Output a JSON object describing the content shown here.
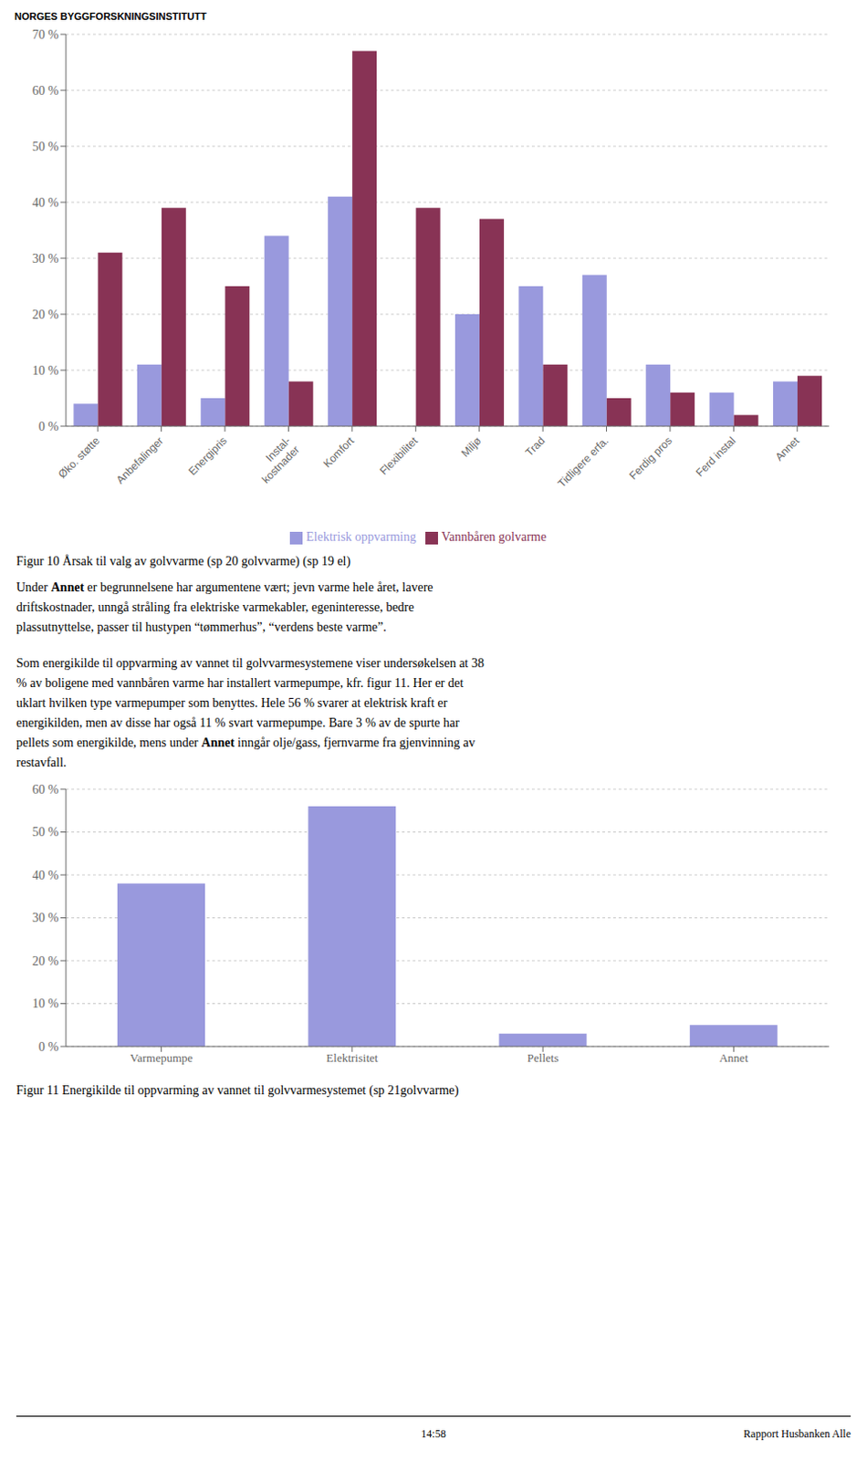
{
  "header": "NORGES BYGGFORSKNINGSINSTITUTT",
  "chart_data": [
    {
      "type": "bar",
      "categories": [
        "Øko. støtte",
        "Anbefalinger",
        "Energipris",
        "Instal-\nkostnader",
        "Komfort",
        "Flexibilitet",
        "Miljø",
        "Trad",
        "Tidligere erfa.",
        "Ferdig pros",
        "Ferd instal",
        "Annet"
      ],
      "series": [
        {
          "name": "Elektrisk oppvarming",
          "color": "#9999dd",
          "values": [
            4,
            11,
            5,
            34,
            41,
            0,
            20,
            25,
            27,
            11,
            6,
            8
          ]
        },
        {
          "name": "Vannbåren golvarme",
          "color": "#883355",
          "values": [
            31,
            39,
            25,
            8,
            67,
            39,
            37,
            11,
            5,
            6,
            2,
            9
          ]
        }
      ],
      "ylim": [
        0,
        70
      ],
      "yticks": [
        {
          "value": 0,
          "label": "0 %"
        },
        {
          "value": 10,
          "label": "10 %"
        },
        {
          "value": 20,
          "label": "20 %"
        },
        {
          "value": 30,
          "label": "30 %"
        },
        {
          "value": 40,
          "label": "40 %"
        },
        {
          "value": 50,
          "label": "50 %"
        },
        {
          "value": 60,
          "label": "60 %"
        },
        {
          "value": 70,
          "label": "70 %"
        }
      ],
      "grid": true,
      "legend": "bottom",
      "caption": "Figur 10 Årsak til valg av golvvarme (sp 20 golvvarme) (sp 19 el)"
    },
    {
      "type": "bar",
      "categories": [
        "Varmepumpe",
        "Elektrisitet",
        "Pellets",
        "Annet"
      ],
      "values": [
        38,
        56,
        3,
        5
      ],
      "color": "#9999dd",
      "ylim": [
        0,
        60
      ],
      "yticks": [
        {
          "value": 0,
          "label": "0 %"
        },
        {
          "value": 10,
          "label": "10 %"
        },
        {
          "value": 20,
          "label": "20 %"
        },
        {
          "value": 30,
          "label": "30 %"
        },
        {
          "value": 40,
          "label": "40 %"
        },
        {
          "value": 50,
          "label": "50 %"
        },
        {
          "value": 60,
          "label": "60 %"
        }
      ],
      "grid": true,
      "caption": "Figur 11 Energikilde til oppvarming av vannet til golvvarmesystemet (sp 21golvvarme)"
    }
  ],
  "paragraphs": [
    [
      [
        "Under ",
        "Annet",
        " er begrunnelsene har argumentene vært; jevn varme hele året, lavere"
      ],
      [
        "driftskostnader, unngå stråling fra elektriske varmekabler, egeninteresse, bedre"
      ],
      [
        "plassutnyttelse, passer til hustypen “tømmerhus”, “verdens beste varme”."
      ]
    ],
    [
      [
        "Som energikilde til oppvarming av vannet til golvvarmesystemene viser undersøkelsen at 38"
      ],
      [
        "% av boligene med vannbåren varme har installert varmepumpe, kfr. figur 11. Her er det"
      ],
      [
        "uklart hvilken type varmepumper som benyttes. Hele 56 % svarer at elektrisk kraft er"
      ],
      [
        "energikilden, men av disse har også 11 % svart varmepumpe. Bare 3 % av de spurte har"
      ],
      [
        "pellets som energikilde, mens under ",
        "Annet",
        " inngår olje/gass, fjernvarme fra gjenvinning av"
      ],
      [
        "restavfall."
      ]
    ]
  ],
  "footer": [
    "14:58",
    "Rapport Husbanken Alle"
  ]
}
